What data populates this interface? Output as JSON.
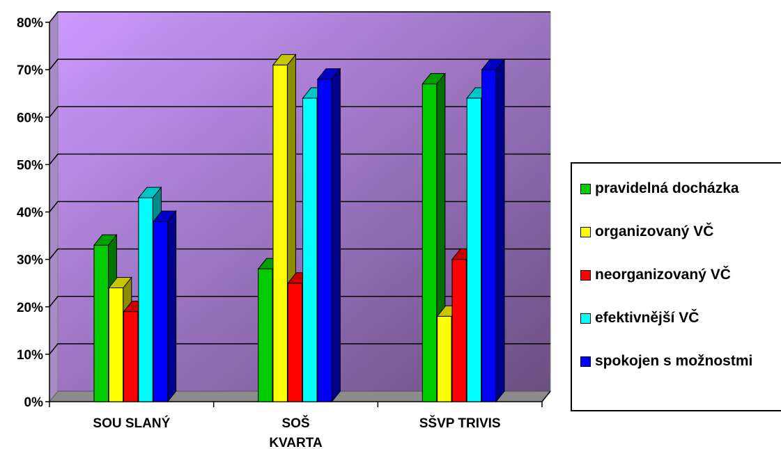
{
  "chart_data": {
    "type": "bar",
    "categories": [
      [
        "SOU SLANÝ"
      ],
      [
        "SOŠ",
        "KVARTA"
      ],
      [
        "SŠVP TRIVIS"
      ]
    ],
    "y_ticks": [
      "0%",
      "10%",
      "20%",
      "30%",
      "40%",
      "50%",
      "60%",
      "70%",
      "80%"
    ],
    "ylim": [
      0,
      80
    ],
    "grid": true,
    "legend_position": "right",
    "series": [
      {
        "name": "pravidelná docházka",
        "color": "#00cc00",
        "values": [
          33,
          28,
          67
        ]
      },
      {
        "name": "organizovaný VČ",
        "color": "#ffff00",
        "values": [
          24,
          71,
          18
        ]
      },
      {
        "name": "neorganizovaný VČ",
        "color": "#ff0000",
        "values": [
          19,
          25,
          30
        ]
      },
      {
        "name": "efektivnější VČ",
        "color": "#00ffff",
        "values": [
          43,
          64,
          64
        ]
      },
      {
        "name": "spokojen s možnostmi",
        "color": "#0000ff",
        "values": [
          38,
          68,
          70
        ]
      }
    ]
  }
}
